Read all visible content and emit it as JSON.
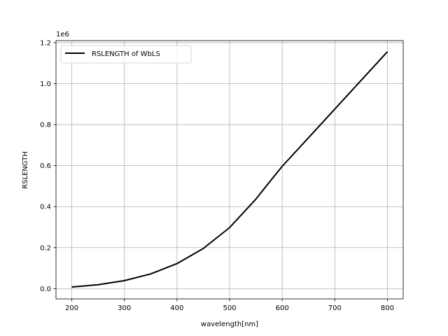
{
  "chart_data": {
    "type": "line",
    "xlabel": "wavelength[nm]",
    "ylabel": "RSLENGTH",
    "y_offset_text": "1e6",
    "xlim": [
      170,
      830
    ],
    "ylim": [
      -0.05,
      1.21
    ],
    "x_ticks": [
      200,
      300,
      400,
      500,
      600,
      700,
      800
    ],
    "x_tick_labels": [
      "200",
      "300",
      "400",
      "500",
      "600",
      "700",
      "800"
    ],
    "y_ticks": [
      0.0,
      0.2,
      0.4,
      0.6,
      0.8,
      1.0,
      1.2
    ],
    "y_tick_labels": [
      "0.0",
      "0.2",
      "0.4",
      "0.6",
      "0.8",
      "1.0",
      "1.2"
    ],
    "grid": true,
    "legend_position": "top-left",
    "series": [
      {
        "name": "RSLENGTH of WbLS",
        "color": "#000000",
        "x": [
          200,
          250,
          300,
          350,
          400,
          450,
          500,
          550,
          575,
          600,
          650,
          700,
          750,
          800
        ],
        "y": [
          0.008,
          0.019,
          0.039,
          0.072,
          0.122,
          0.196,
          0.298,
          0.437,
          0.518,
          0.597,
          0.736,
          0.876,
          1.016,
          1.156
        ]
      }
    ]
  }
}
